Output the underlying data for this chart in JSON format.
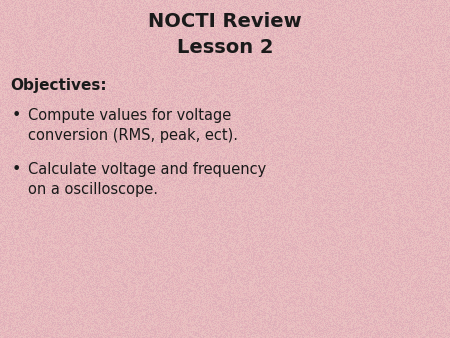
{
  "title_line1": "NOCTI Review",
  "title_line2": "Lesson 2",
  "objectives_label": "Objectives:",
  "bullet1_line1": "Compute values for voltage",
  "bullet1_line2": "conversion (RMS, peak, ect).",
  "bullet2_line1": "Calculate voltage and frequency",
  "bullet2_line2": "on a oscilloscope.",
  "background_color": "#e8c0c0",
  "text_color": "#1a1a1a",
  "title_fontsize": 14,
  "objectives_fontsize": 11,
  "bullet_fontsize": 10.5,
  "fig_width": 4.5,
  "fig_height": 3.38,
  "dpi": 100
}
